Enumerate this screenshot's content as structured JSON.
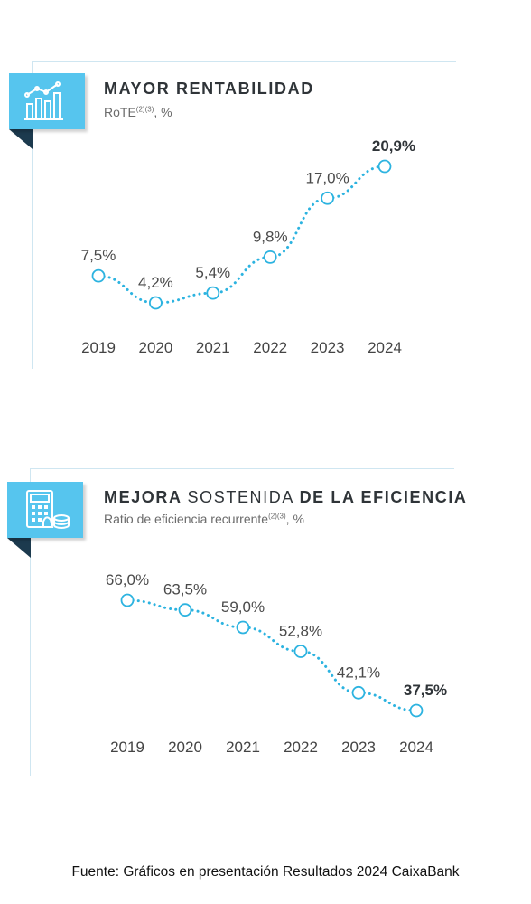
{
  "colors": {
    "accent": "#56c5ee",
    "line": "#2cb3e0",
    "dark_tab": "#1c3a4e",
    "text": "#333333"
  },
  "panels": [
    {
      "icon": "bar-chart-trend-icon",
      "title_parts": [
        {
          "text": "MAYOR RENTABILIDAD",
          "bold": true
        }
      ],
      "subtitle_main": "RoTE",
      "subtitle_sup": "(2)(3)",
      "subtitle_tail": ", %"
    },
    {
      "icon": "calculator-coins-icon",
      "title_parts": [
        {
          "text": "MEJORA ",
          "bold": true
        },
        {
          "text": "SOSTENIDA ",
          "bold": false
        },
        {
          "text": "DE LA EFICIENCIA",
          "bold": true
        }
      ],
      "subtitle_main": "Ratio de eficiencia recurrente",
      "subtitle_sup": "(2)(3)",
      "subtitle_tail": ", %"
    }
  ],
  "chart_data": [
    {
      "type": "line",
      "title": "MAYOR RENTABILIDAD",
      "subtitle": "RoTE(2)(3), %",
      "categories": [
        "2019",
        "2020",
        "2021",
        "2022",
        "2023",
        "2024"
      ],
      "values": [
        7.5,
        4.2,
        5.4,
        9.8,
        17.0,
        20.9
      ],
      "value_labels": [
        "7,5%",
        "4,2%",
        "5,4%",
        "9,8%",
        "17,0%",
        "20,9%"
      ],
      "highlight_last": true,
      "line_style": "dotted",
      "marker": "hollow-circle",
      "grid": false,
      "legend": "none"
    },
    {
      "type": "line",
      "title": "MEJORA SOSTENIDA DE LA EFICIENCIA",
      "subtitle": "Ratio de eficiencia recurrente(2)(3), %",
      "categories": [
        "2019",
        "2020",
        "2021",
        "2022",
        "2023",
        "2024"
      ],
      "values": [
        66.0,
        63.5,
        59.0,
        52.8,
        42.1,
        37.5
      ],
      "value_labels": [
        "66,0%",
        "63,5%",
        "59,0%",
        "52,8%",
        "42,1%",
        "37,5%"
      ],
      "highlight_last": true,
      "line_style": "dotted",
      "marker": "hollow-circle",
      "grid": false,
      "legend": "none"
    }
  ],
  "footer": "Fuente: Gráficos en presentación Resultados 2024 CaixaBank"
}
